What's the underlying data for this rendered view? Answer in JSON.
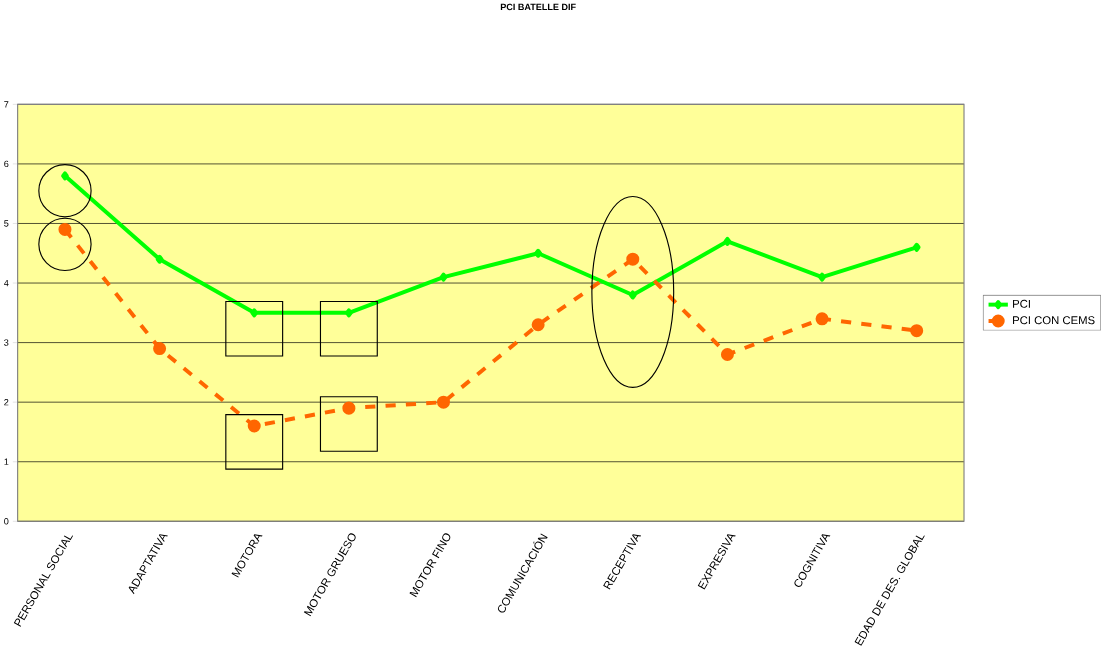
{
  "chart_data": {
    "type": "line",
    "title": "PCI BATELLE DIF",
    "categories": [
      "PERSONAL SOCIAL",
      "ADAPTATIVA",
      "MOTORA",
      "MOTOR GRUESO",
      "MOTOR FINO",
      "COMUNICACIÓN",
      "RECEPTIVA",
      "EXPRESIVA",
      "COGNITIVA",
      "EDAD DE DES. GLOBAL"
    ],
    "series": [
      {
        "name": "PCI",
        "color": "#00ff00",
        "marker": "diamond",
        "line_style": "solid",
        "values": [
          5.8,
          4.4,
          3.5,
          3.5,
          4.1,
          4.5,
          3.8,
          4.7,
          4.1,
          4.6
        ]
      },
      {
        "name": "PCI CON CEMS",
        "color": "#ff6600",
        "marker": "circle",
        "line_style": "dashed",
        "values": [
          4.9,
          2.9,
          1.6,
          1.9,
          2.0,
          3.3,
          4.4,
          2.8,
          3.4,
          3.2
        ]
      }
    ],
    "ylim": [
      0,
      7
    ],
    "yticks": [
      0,
      1,
      2,
      3,
      4,
      5,
      6,
      7
    ],
    "grid": "y",
    "legend": "right"
  }
}
